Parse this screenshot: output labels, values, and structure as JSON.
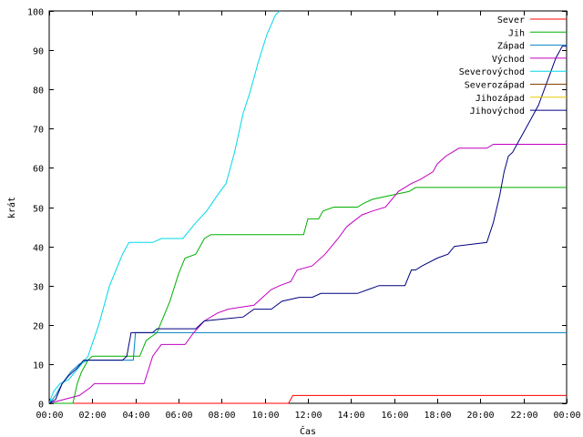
{
  "chart_data": {
    "type": "line",
    "title": "",
    "xlabel": "Čas",
    "ylabel": "krát",
    "xlim": [
      0,
      24
    ],
    "ylim": [
      0,
      100
    ],
    "x_ticks": [
      "00:00",
      "02:00",
      "04:00",
      "06:00",
      "08:00",
      "10:00",
      "12:00",
      "14:00",
      "16:00",
      "18:00",
      "20:00",
      "22:00",
      "00:00"
    ],
    "y_ticks": [
      "0",
      "10",
      "20",
      "30",
      "40",
      "50",
      "60",
      "70",
      "80",
      "90",
      "100"
    ],
    "grid": false,
    "legend_position": "top-right",
    "series": [
      {
        "name": "Sever",
        "color": "#ff0000",
        "points": [
          [
            0,
            0
          ],
          [
            11.1,
            0
          ],
          [
            11.2,
            1
          ],
          [
            11.3,
            2
          ],
          [
            24,
            2
          ]
        ]
      },
      {
        "name": "Jih",
        "color": "#00b000",
        "points": [
          [
            0,
            0
          ],
          [
            1.1,
            0
          ],
          [
            1.3,
            5
          ],
          [
            1.5,
            8
          ],
          [
            1.8,
            11
          ],
          [
            2.0,
            12
          ],
          [
            4.2,
            12
          ],
          [
            4.5,
            16
          ],
          [
            5.0,
            18
          ],
          [
            5.3,
            22
          ],
          [
            5.6,
            26
          ],
          [
            6.0,
            33
          ],
          [
            6.3,
            37
          ],
          [
            6.8,
            38
          ],
          [
            7.2,
            42
          ],
          [
            7.5,
            43
          ],
          [
            11.8,
            43
          ],
          [
            12.0,
            47
          ],
          [
            12.5,
            47
          ],
          [
            12.7,
            49
          ],
          [
            13.2,
            50
          ],
          [
            14.3,
            50
          ],
          [
            14.6,
            51
          ],
          [
            15.0,
            52
          ],
          [
            16.7,
            54
          ],
          [
            17.0,
            55
          ],
          [
            24,
            55
          ]
        ]
      },
      {
        "name": "Západ",
        "color": "#0080c0",
        "points": [
          [
            0,
            0
          ],
          [
            0.3,
            2
          ],
          [
            0.6,
            5
          ],
          [
            1.0,
            8
          ],
          [
            1.4,
            10
          ],
          [
            1.8,
            11
          ],
          [
            3.9,
            11
          ],
          [
            4.0,
            18
          ],
          [
            4.3,
            18
          ],
          [
            24,
            18
          ]
        ]
      },
      {
        "name": "Východ",
        "color": "#c000c0",
        "points": [
          [
            0,
            0
          ],
          [
            1.4,
            2
          ],
          [
            1.9,
            4
          ],
          [
            2.1,
            5
          ],
          [
            4.4,
            5
          ],
          [
            4.8,
            12
          ],
          [
            5.2,
            15
          ],
          [
            6.3,
            15
          ],
          [
            6.7,
            18
          ],
          [
            7.2,
            21
          ],
          [
            7.8,
            23
          ],
          [
            8.3,
            24
          ],
          [
            9.5,
            25
          ],
          [
            10.3,
            29
          ],
          [
            10.7,
            30
          ],
          [
            11.2,
            31
          ],
          [
            11.5,
            34
          ],
          [
            12.2,
            35
          ],
          [
            12.8,
            38
          ],
          [
            13.4,
            42
          ],
          [
            13.8,
            45
          ],
          [
            14.5,
            48
          ],
          [
            15.0,
            49
          ],
          [
            15.6,
            50
          ],
          [
            16.2,
            54
          ],
          [
            16.8,
            56
          ],
          [
            17.2,
            57
          ],
          [
            17.8,
            59
          ],
          [
            18.0,
            61
          ],
          [
            18.4,
            63
          ],
          [
            18.7,
            64
          ],
          [
            19.0,
            65
          ],
          [
            20.3,
            65
          ],
          [
            20.6,
            66
          ],
          [
            24,
            66
          ]
        ]
      },
      {
        "name": "Severovýchod",
        "color": "#00d8e8",
        "points": [
          [
            0,
            0
          ],
          [
            0.2,
            3
          ],
          [
            0.5,
            5
          ],
          [
            0.9,
            6
          ],
          [
            1.2,
            8
          ],
          [
            1.5,
            10
          ],
          [
            1.8,
            12
          ],
          [
            2.3,
            20
          ],
          [
            2.8,
            30
          ],
          [
            3.4,
            38
          ],
          [
            3.7,
            41
          ],
          [
            4.8,
            41
          ],
          [
            5.2,
            42
          ],
          [
            6.2,
            42
          ],
          [
            6.8,
            46
          ],
          [
            7.3,
            49
          ],
          [
            7.8,
            53
          ],
          [
            8.2,
            56
          ],
          [
            8.6,
            64
          ],
          [
            9.0,
            74
          ],
          [
            9.3,
            79
          ],
          [
            9.7,
            87
          ],
          [
            10.1,
            94
          ],
          [
            10.5,
            99
          ],
          [
            10.7,
            100
          ]
        ]
      },
      {
        "name": "Severozápad",
        "color": "#804000",
        "points": []
      },
      {
        "name": "Jihozápad",
        "color": "#e8c800",
        "points": []
      },
      {
        "name": "Jihovýchod",
        "color": "#000080",
        "points": [
          [
            0,
            0
          ],
          [
            0.3,
            1
          ],
          [
            0.6,
            5
          ],
          [
            0.9,
            7
          ],
          [
            1.3,
            9
          ],
          [
            1.6,
            11
          ],
          [
            2.0,
            11
          ],
          [
            3.4,
            11
          ],
          [
            3.6,
            12
          ],
          [
            3.8,
            18
          ],
          [
            4.0,
            18
          ],
          [
            4.8,
            18
          ],
          [
            5.0,
            19
          ],
          [
            6.8,
            19
          ],
          [
            7.2,
            21
          ],
          [
            9.0,
            22
          ],
          [
            9.5,
            24
          ],
          [
            10.3,
            24
          ],
          [
            10.8,
            26
          ],
          [
            11.6,
            27
          ],
          [
            12.2,
            27
          ],
          [
            12.6,
            28
          ],
          [
            14.3,
            28
          ],
          [
            14.8,
            29
          ],
          [
            15.3,
            30
          ],
          [
            16.5,
            30
          ],
          [
            16.8,
            34
          ],
          [
            17.0,
            34
          ],
          [
            17.3,
            35
          ],
          [
            18.0,
            37
          ],
          [
            18.5,
            38
          ],
          [
            18.8,
            40
          ],
          [
            20.3,
            41
          ],
          [
            20.6,
            46
          ],
          [
            20.9,
            53
          ],
          [
            21.1,
            59
          ],
          [
            21.3,
            63
          ],
          [
            21.5,
            64
          ],
          [
            21.8,
            67
          ],
          [
            22.3,
            72
          ],
          [
            22.7,
            76
          ],
          [
            23.1,
            82
          ],
          [
            23.5,
            88
          ],
          [
            23.8,
            91
          ],
          [
            24,
            91
          ]
        ]
      }
    ]
  }
}
